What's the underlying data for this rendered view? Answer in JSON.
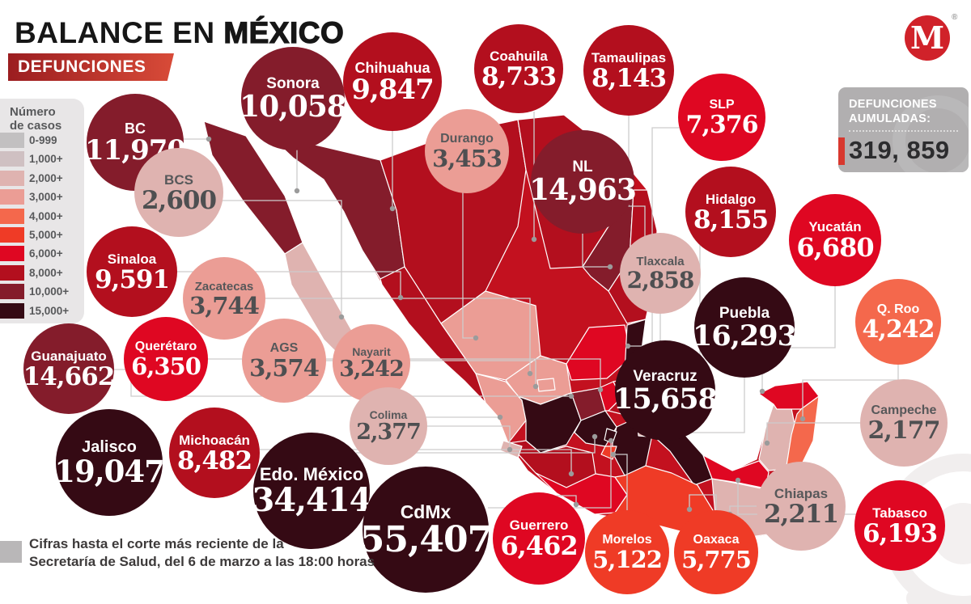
{
  "header": {
    "title_regular": "BALANCE EN ",
    "title_bold": "MÉXICO",
    "banner": "DEFUNCIONES"
  },
  "logo": {
    "letter": "M",
    "registered": "®",
    "color": "#d0222a"
  },
  "legend": {
    "title_line1": "Número",
    "title_line2": "de casos",
    "bands": [
      {
        "key": "b0",
        "label": "0-999",
        "color": "#c2c0c1"
      },
      {
        "key": "b1000",
        "label": "1,000+",
        "color": "#cfc0c2"
      },
      {
        "key": "b2000",
        "label": "2,000+",
        "color": "#dfb3b0"
      },
      {
        "key": "b3000",
        "label": "3,000+",
        "color": "#eb9d95"
      },
      {
        "key": "b4000",
        "label": "4,000+",
        "color": "#f4684c"
      },
      {
        "key": "b5000",
        "label": "5,000+",
        "color": "#ef3b26"
      },
      {
        "key": "b6000",
        "label": "6,000+",
        "color": "#df0722"
      },
      {
        "key": "b8000",
        "label": "8,000+",
        "color": "#b30f1e"
      },
      {
        "key": "b10000",
        "label": "10,000+",
        "color": "#841c2b"
      },
      {
        "key": "b15000",
        "label": "15,000+",
        "color": "#350a14"
      }
    ]
  },
  "accumulated": {
    "label_line1": "DEFUNCIONES",
    "label_line2": "AUMULADAS:",
    "value": "319, 859",
    "accent_color": "#d8382e",
    "box_color": "#b1afb0"
  },
  "footer": {
    "line1": "Cifras hasta el corte más reciente de la",
    "line2": "Secretaría de Salud, del 6 de marzo a las 18:00 horas"
  },
  "states": [
    {
      "name": "BC",
      "value": "11,970",
      "band": "b10000"
    },
    {
      "name": "Sonora",
      "value": "10,058",
      "band": "b10000"
    },
    {
      "name": "Chihuahua",
      "value": "9,847",
      "band": "b8000"
    },
    {
      "name": "Coahuila",
      "value": "8,733",
      "band": "b8000"
    },
    {
      "name": "Tamaulipas",
      "value": "8,143",
      "band": "b8000"
    },
    {
      "name": "Durango",
      "value": "3,453",
      "band": "b3000"
    },
    {
      "name": "NL",
      "value": "14,963",
      "band": "b10000"
    },
    {
      "name": "SLP",
      "value": "7,376",
      "band": "b6000"
    },
    {
      "name": "Hidalgo",
      "value": "8,155",
      "band": "b8000"
    },
    {
      "name": "Yucatán",
      "value": "6,680",
      "band": "b6000"
    },
    {
      "name": "BCS",
      "value": "2,600",
      "band": "b2000"
    },
    {
      "name": "Sinaloa",
      "value": "9,591",
      "band": "b8000"
    },
    {
      "name": "Zacatecas",
      "value": "3,744",
      "band": "b3000"
    },
    {
      "name": "Tlaxcala",
      "value": "2,858",
      "band": "b2000"
    },
    {
      "name": "Puebla",
      "value": "16,293",
      "band": "b15000"
    },
    {
      "name": "Q. Roo",
      "value": "4,242",
      "band": "b4000"
    },
    {
      "name": "Querétaro",
      "value": "6,350",
      "band": "b6000"
    },
    {
      "name": "AGS",
      "value": "3,574",
      "band": "b3000"
    },
    {
      "name": "Nayarit",
      "value": "3,242",
      "band": "b3000"
    },
    {
      "name": "Guanajuato",
      "value": "14,662",
      "band": "b10000"
    },
    {
      "name": "Veracruz",
      "value": "15,658",
      "band": "b15000"
    },
    {
      "name": "Campeche",
      "value": "2,177",
      "band": "b2000"
    },
    {
      "name": "Colima",
      "value": "2,377",
      "band": "b2000"
    },
    {
      "name": "Michoacán",
      "value": "8,482",
      "band": "b8000"
    },
    {
      "name": "Jalisco",
      "value": "19,047",
      "band": "b15000"
    },
    {
      "name": "Edo. México",
      "value": "34,414",
      "band": "b15000"
    },
    {
      "name": "CdMx",
      "value": "55,407",
      "band": "b15000"
    },
    {
      "name": "Guerrero",
      "value": "6,462",
      "band": "b6000"
    },
    {
      "name": "Morelos",
      "value": "5,122",
      "band": "b5000"
    },
    {
      "name": "Oaxaca",
      "value": "5,775",
      "band": "b5000"
    },
    {
      "name": "Chiapas",
      "value": "2,211",
      "band": "b2000"
    },
    {
      "name": "Tabasco",
      "value": "6,193",
      "band": "b6000"
    }
  ],
  "chart_data": {
    "type": "heatmap",
    "subtype": "choropleth-map-of-mexico",
    "title": "BALANCE EN MÉXICO — DEFUNCIONES",
    "unit": "defunciones (deaths)",
    "total_label": "DEFUNCIONES AUMULADAS:",
    "total": 319859,
    "legend_title": "Número de casos",
    "legend_bands": [
      "0-999",
      "1,000+",
      "2,000+",
      "3,000+",
      "4,000+",
      "5,000+",
      "6,000+",
      "8,000+",
      "10,000+",
      "15,000+"
    ],
    "regions": [
      {
        "state": "BC",
        "value": 11970
      },
      {
        "state": "Sonora",
        "value": 10058
      },
      {
        "state": "Chihuahua",
        "value": 9847
      },
      {
        "state": "Coahuila",
        "value": 8733
      },
      {
        "state": "Tamaulipas",
        "value": 8143
      },
      {
        "state": "Durango",
        "value": 3453
      },
      {
        "state": "NL",
        "value": 14963
      },
      {
        "state": "SLP",
        "value": 7376
      },
      {
        "state": "Hidalgo",
        "value": 8155
      },
      {
        "state": "Yucatán",
        "value": 6680
      },
      {
        "state": "BCS",
        "value": 2600
      },
      {
        "state": "Sinaloa",
        "value": 9591
      },
      {
        "state": "Zacatecas",
        "value": 3744
      },
      {
        "state": "Tlaxcala",
        "value": 2858
      },
      {
        "state": "Puebla",
        "value": 16293
      },
      {
        "state": "Q. Roo",
        "value": 4242
      },
      {
        "state": "Querétaro",
        "value": 6350
      },
      {
        "state": "AGS",
        "value": 3574
      },
      {
        "state": "Nayarit",
        "value": 3242
      },
      {
        "state": "Guanajuato",
        "value": 14662
      },
      {
        "state": "Veracruz",
        "value": 15658
      },
      {
        "state": "Campeche",
        "value": 2177
      },
      {
        "state": "Colima",
        "value": 2377
      },
      {
        "state": "Michoacán",
        "value": 8482
      },
      {
        "state": "Jalisco",
        "value": 19047
      },
      {
        "state": "Edo. México",
        "value": 34414
      },
      {
        "state": "CdMx",
        "value": 55407
      },
      {
        "state": "Guerrero",
        "value": 6462
      },
      {
        "state": "Morelos",
        "value": 5122
      },
      {
        "state": "Oaxaca",
        "value": 5775
      },
      {
        "state": "Chiapas",
        "value": 2211
      },
      {
        "state": "Tabasco",
        "value": 6193
      }
    ],
    "note": "Cifras hasta el corte más reciente de la Secretaría de Salud, del 6 de marzo a las 18:00 horas"
  }
}
